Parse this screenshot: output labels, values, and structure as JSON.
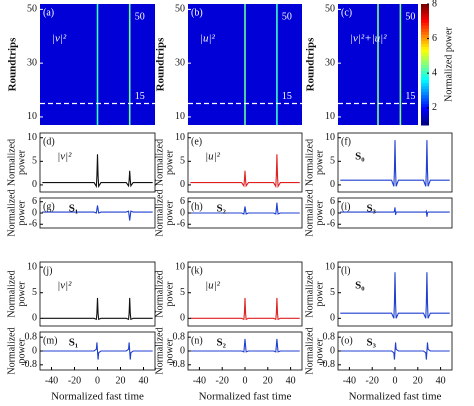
{
  "chart_data": [
    {
      "type": "heatmap",
      "label": "(a)",
      "annotation": "|v|²",
      "ylabel": "Roundtrips",
      "xlim": [
        -50,
        50
      ],
      "ylim": [
        7,
        52
      ],
      "yticks": [
        10,
        30,
        50
      ],
      "clim": [
        1,
        8
      ],
      "background": 1.6,
      "traces": {
        "x": [
          0,
          28
        ],
        "values": [
          4,
          4.3
        ]
      },
      "top_label": 50,
      "dashed_line": 15
    },
    {
      "type": "heatmap",
      "label": "(b)",
      "annotation": "|u|²",
      "ylabel": "Roundtrips",
      "xlim": [
        -50,
        50
      ],
      "ylim": [
        7,
        52
      ],
      "yticks": [
        10,
        30,
        50
      ],
      "clim": [
        1,
        8
      ],
      "background": 1.6,
      "traces": {
        "x": [
          0,
          28
        ],
        "values": [
          4.3,
          4
        ]
      },
      "top_label": 50,
      "dashed_line": 15
    },
    {
      "type": "heatmap",
      "label": "(c)",
      "annotation": "|v|²+|u|²",
      "ylabel": "Roundtrips",
      "xlim": [
        -50,
        50
      ],
      "ylim": [
        7,
        52
      ],
      "yticks": [
        10,
        30,
        50
      ],
      "clim": [
        1,
        8
      ],
      "background": 1.6,
      "traces": {
        "x": [
          0,
          28
        ],
        "values": [
          4.5,
          4.5
        ]
      },
      "top_label": 50,
      "dashed_line": 15,
      "colorbar": {
        "label": "Normalized power",
        "ticks": [
          2,
          4,
          6,
          8
        ]
      }
    },
    {
      "type": "line",
      "label": "(d)",
      "annotation": "|v|²",
      "ylabel": [
        "Normalized",
        "power"
      ],
      "color": "#111111",
      "xlim": [
        -50,
        50
      ],
      "ylim": [
        -1.5,
        11
      ],
      "yticks": [
        0,
        5,
        10
      ],
      "x": [
        -48,
        -3,
        -1,
        -0.5,
        0,
        0.5,
        1,
        3,
        25,
        27,
        27.5,
        28,
        28.5,
        29,
        31,
        48
      ],
      "values": [
        0.5,
        0.5,
        -0.3,
        2,
        6.5,
        2,
        -0.3,
        0.5,
        0.5,
        -0.2,
        1,
        3,
        1,
        -0.2,
        0.5,
        0.5
      ]
    },
    {
      "type": "line",
      "label": "(e)",
      "annotation": "|u|²",
      "ylabel": [
        "Normalized",
        "power"
      ],
      "color": "#e02020",
      "xlim": [
        -50,
        50
      ],
      "ylim": [
        -1.5,
        11
      ],
      "yticks": [
        0,
        5,
        10
      ],
      "x": [
        -48,
        -3,
        -1,
        -0.5,
        0,
        0.5,
        1,
        3,
        25,
        27,
        27.5,
        28,
        28.5,
        29,
        31,
        48
      ],
      "values": [
        0.5,
        0.5,
        -0.2,
        1,
        3,
        1,
        -0.2,
        0.5,
        0.5,
        -0.3,
        2,
        6.5,
        2,
        -0.3,
        0.5,
        0.5
      ]
    },
    {
      "type": "line",
      "label": "(f)",
      "annotation": "S₀",
      "ylabel": [
        "Normalized",
        "power"
      ],
      "color": "#1f3fd0",
      "xlim": [
        -50,
        50
      ],
      "ylim": [
        -1.5,
        11
      ],
      "yticks": [
        0,
        5,
        10
      ],
      "x": [
        -48,
        -3,
        -1,
        -0.5,
        0,
        0.5,
        1,
        3,
        25,
        27,
        27.5,
        28,
        28.5,
        29,
        31,
        48
      ],
      "values": [
        1,
        1,
        -0.3,
        3,
        9.5,
        3,
        -0.3,
        1,
        1,
        -0.3,
        3,
        9.5,
        3,
        -0.3,
        1,
        1
      ]
    },
    {
      "type": "line",
      "label": "(g)",
      "annotation": "S₁",
      "ylabel": [
        "Normalized",
        "power"
      ],
      "color": "#1f3fd0",
      "xlim": [
        -50,
        50
      ],
      "ylim": [
        -8,
        8
      ],
      "yticks": [
        -6,
        0,
        6
      ],
      "x": [
        -48,
        -3,
        -1,
        -0.5,
        0,
        0.5,
        1,
        3,
        25,
        27,
        27.5,
        28,
        28.5,
        29,
        31,
        48
      ],
      "values": [
        0.5,
        0.5,
        0,
        2,
        4,
        2,
        0,
        0.5,
        0.5,
        1,
        -1.5,
        -4,
        -1.5,
        1,
        0.5,
        0.5
      ]
    },
    {
      "type": "line",
      "label": "(h)",
      "annotation": "S₂",
      "ylabel": [
        "Normalized",
        "power"
      ],
      "color": "#1f3fd0",
      "xlim": [
        -50,
        50
      ],
      "ylim": [
        -8,
        8
      ],
      "yticks": [
        -6,
        0,
        6
      ],
      "x": [
        -48,
        -3,
        -1,
        -0.5,
        0,
        0.5,
        1,
        3,
        25,
        27,
        27.5,
        28,
        28.5,
        29,
        31,
        48
      ],
      "values": [
        0,
        0,
        -0.5,
        1.5,
        3.5,
        1.5,
        -0.5,
        0,
        0,
        -0.5,
        2,
        5.5,
        2,
        -0.5,
        0,
        0
      ]
    },
    {
      "type": "line",
      "label": "(i)",
      "annotation": "S₃",
      "ylabel": [
        "Normalized",
        "power"
      ],
      "color": "#1f3fd0",
      "xlim": [
        -50,
        50
      ],
      "ylim": [
        -8,
        8
      ],
      "yticks": [
        -6,
        0,
        6
      ],
      "x": [
        -48,
        -3,
        -1,
        -0.5,
        0,
        0.5,
        1,
        3,
        25,
        27,
        27.5,
        28,
        28.5,
        29,
        31,
        48
      ],
      "values": [
        0.5,
        0.5,
        0.5,
        1,
        3,
        -1,
        0.5,
        0.5,
        0.5,
        0.5,
        1,
        -2,
        0,
        0.5,
        0.5,
        0.5
      ]
    },
    {
      "type": "line",
      "label": "(j)",
      "annotation": "|v|²",
      "ylabel": [
        "Normalized",
        "power"
      ],
      "color": "#111111",
      "xlim": [
        -50,
        50
      ],
      "ylim": [
        -1.5,
        11
      ],
      "yticks": [
        0,
        5,
        10
      ],
      "x": [
        -48,
        -3,
        -1,
        -0.5,
        0,
        0.5,
        1,
        3,
        25,
        27,
        27.5,
        28,
        28.5,
        29,
        31,
        48
      ],
      "values": [
        0,
        0,
        -0.2,
        1,
        4,
        1,
        -0.2,
        0,
        0,
        -0.2,
        1,
        4,
        1,
        -0.2,
        0,
        0
      ]
    },
    {
      "type": "line",
      "label": "(k)",
      "annotation": "|u|²",
      "ylabel": [
        "Normalized",
        "power"
      ],
      "color": "#e02020",
      "xlim": [
        -50,
        50
      ],
      "ylim": [
        -1.5,
        11
      ],
      "yticks": [
        0,
        5,
        10
      ],
      "x": [
        -48,
        -3,
        -1,
        -0.5,
        0,
        0.5,
        1,
        3,
        25,
        27,
        27.5,
        28,
        28.5,
        29,
        31,
        48
      ],
      "values": [
        0,
        0,
        -0.2,
        1,
        4,
        1,
        -0.2,
        0,
        0,
        -0.2,
        1,
        4,
        1,
        -0.2,
        0,
        0
      ]
    },
    {
      "type": "line",
      "label": "(l)",
      "annotation": "S₀",
      "ylabel": [
        "Normalized",
        "power"
      ],
      "color": "#1f3fd0",
      "xlim": [
        -50,
        50
      ],
      "ylim": [
        -1.5,
        11
      ],
      "yticks": [
        0,
        5,
        10
      ],
      "x": [
        -48,
        -3,
        -1,
        -0.5,
        0,
        0.5,
        1,
        3,
        25,
        27,
        27.5,
        28,
        28.5,
        29,
        31,
        48
      ],
      "values": [
        1,
        1,
        0,
        3,
        9,
        3,
        0,
        1,
        1,
        0,
        3,
        9,
        3,
        0,
        1,
        1
      ]
    },
    {
      "type": "line",
      "label": "(m)",
      "annotation": "S₁",
      "ylabel": [
        "Normalized",
        "power"
      ],
      "xlabel": "Normalized fast time",
      "color": "#1f3fd0",
      "xlim": [
        -50,
        50
      ],
      "ylim": [
        -1.1,
        1.1
      ],
      "yticks": [
        -0.8,
        0,
        0.8
      ],
      "xticks": [
        -40,
        -20,
        0,
        20,
        40
      ],
      "x": [
        -48,
        -3,
        -1,
        -0.5,
        0,
        0.5,
        1,
        3,
        25,
        27,
        27.5,
        28,
        28.5,
        29,
        31,
        48
      ],
      "values": [
        0,
        0,
        0.1,
        0.5,
        0,
        -0.5,
        -0.1,
        0,
        0,
        0.1,
        0.5,
        0,
        -0.5,
        -0.1,
        0,
        0
      ]
    },
    {
      "type": "line",
      "label": "(n)",
      "annotation": "S₂",
      "ylabel": [
        "Normalized",
        "power"
      ],
      "xlabel": "Normalized fast time",
      "color": "#1f3fd0",
      "xlim": [
        -50,
        50
      ],
      "ylim": [
        -1.1,
        1.1
      ],
      "yticks": [
        -0.8,
        0,
        0.8
      ],
      "xticks": [
        -40,
        -20,
        0,
        20,
        40
      ],
      "x": [
        -48,
        -3,
        -1,
        -0.5,
        0,
        0.5,
        1,
        3,
        25,
        27,
        27.5,
        28,
        28.5,
        29,
        31,
        48
      ],
      "values": [
        0,
        0,
        -0.05,
        0.3,
        0.7,
        0.3,
        -0.05,
        0,
        0,
        -0.05,
        0.3,
        0.7,
        0.3,
        -0.05,
        0,
        0
      ]
    },
    {
      "type": "line",
      "label": "(o)",
      "annotation": "S₃",
      "ylabel": [
        "Normalized",
        "power"
      ],
      "xlabel": "Normalized fast time",
      "color": "#1f3fd0",
      "xlim": [
        -50,
        50
      ],
      "ylim": [
        -1.1,
        1.1
      ],
      "yticks": [
        -0.8,
        0,
        0.8
      ],
      "xticks": [
        -40,
        -20,
        0,
        20,
        40
      ],
      "x": [
        -48,
        -3,
        -1,
        -0.5,
        0,
        0.5,
        1,
        3,
        25,
        27,
        27.5,
        28,
        28.5,
        29,
        31,
        48
      ],
      "values": [
        0,
        0,
        -0.1,
        -0.5,
        0,
        0.5,
        0.1,
        0,
        0,
        -0.1,
        -0.5,
        0,
        0.5,
        0.1,
        0,
        0
      ]
    }
  ]
}
